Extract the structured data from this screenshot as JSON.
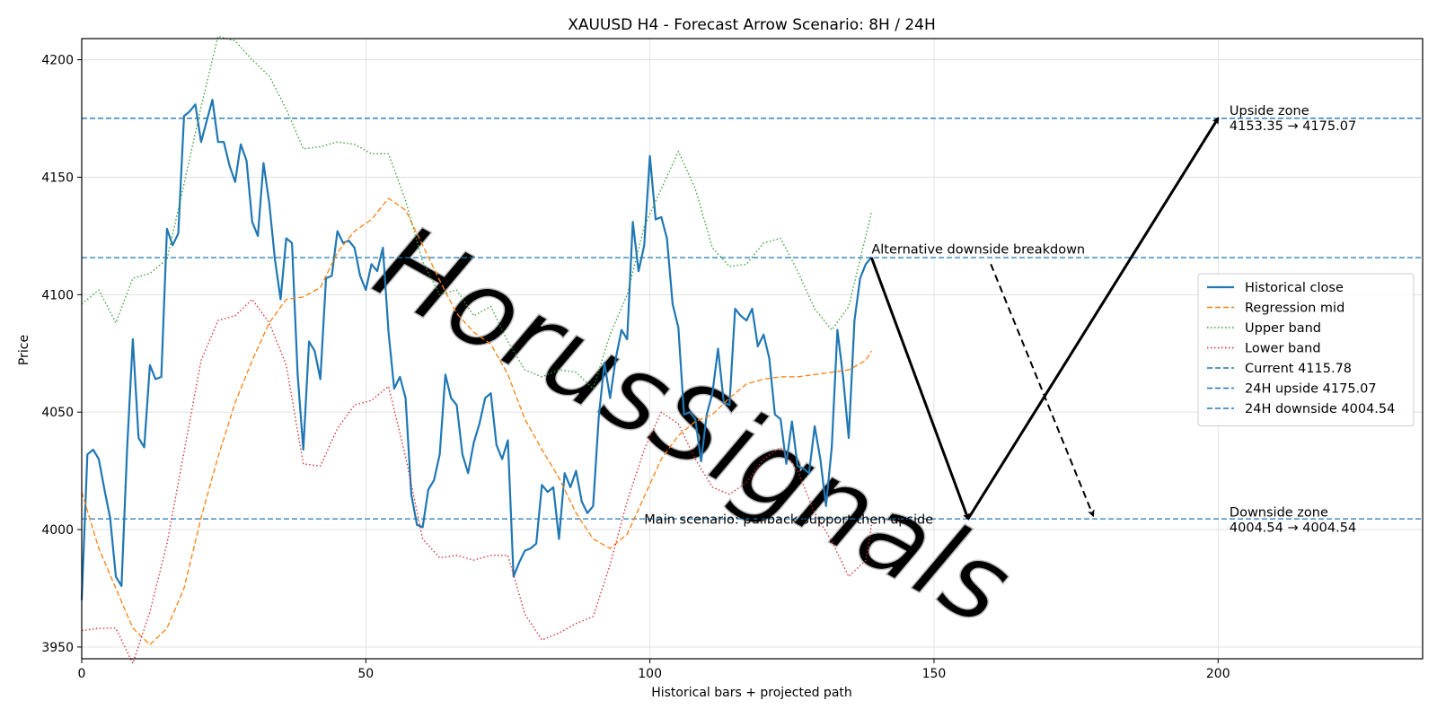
{
  "chart_data": {
    "type": "line",
    "title": "XAUUSD H4 - Forecast Arrow Scenario: 8H / 24H",
    "xlabel": "Historical bars + projected path",
    "ylabel": "Price",
    "xlim": [
      0,
      236
    ],
    "ylim": [
      3945,
      4209
    ],
    "xticks": [
      0,
      50,
      100,
      150,
      200
    ],
    "yticks": [
      3950,
      4000,
      4050,
      4100,
      4150,
      4200
    ],
    "grid": true,
    "legend_position": "center-right",
    "watermark": "HorusSignals",
    "series": [
      {
        "name": "Historical close",
        "style": "solid",
        "color": "#1f77b4",
        "x": [
          0,
          1,
          2,
          3,
          4,
          5,
          6,
          7,
          8,
          9,
          10,
          11,
          12,
          13,
          14,
          15,
          16,
          17,
          18,
          19,
          20,
          21,
          22,
          23,
          24,
          25,
          26,
          27,
          28,
          29,
          30,
          31,
          32,
          33,
          34,
          35,
          36,
          37,
          38,
          39,
          40,
          41,
          42,
          43,
          44,
          45,
          46,
          47,
          48,
          49,
          50,
          51,
          52,
          53,
          54,
          55,
          56,
          57,
          58,
          59,
          60,
          61,
          62,
          63,
          64,
          65,
          66,
          67,
          68,
          69,
          70,
          71,
          72,
          73,
          74,
          75,
          76,
          77,
          78,
          79,
          80,
          81,
          82,
          83,
          84,
          85,
          86,
          87,
          88,
          89,
          90,
          91,
          92,
          93,
          94,
          95,
          96,
          97,
          98,
          99,
          100,
          101,
          102,
          103,
          104,
          105,
          106,
          107,
          108,
          109,
          110,
          111,
          112,
          113,
          114,
          115,
          116,
          117,
          118,
          119,
          120,
          121,
          122,
          123,
          124,
          125,
          126,
          127,
          128,
          129,
          130,
          131,
          132,
          133,
          134,
          135,
          136,
          137,
          138,
          139
        ],
        "y": [
          3970,
          4032,
          4034,
          4030,
          4017,
          4005,
          3980,
          3976,
          4035,
          4081,
          4039,
          4035,
          4070,
          4064,
          4065,
          4128,
          4121,
          4126,
          4176,
          4178,
          4181,
          4165,
          4174,
          4183,
          4165,
          4165,
          4155,
          4148,
          4164,
          4157,
          4131,
          4125,
          4156,
          4139,
          4115,
          4098,
          4124,
          4122,
          4066,
          4034,
          4080,
          4076,
          4064,
          4107,
          4108,
          4127,
          4122,
          4123,
          4120,
          4108,
          4102,
          4113,
          4110,
          4120,
          4084,
          4060,
          4065,
          4056,
          4015,
          4002,
          4001,
          4017,
          4021,
          4032,
          4066,
          4056,
          4053,
          4032,
          4024,
          4037,
          4045,
          4056,
          4058,
          4036,
          4030,
          4038,
          3980,
          3986,
          3991,
          3992,
          3994,
          4019,
          4016,
          4018,
          3996,
          4024,
          4018,
          4025,
          4012,
          4007,
          4010,
          4048,
          4071,
          4056,
          4073,
          4085,
          4081,
          4131,
          4110,
          4121,
          4159,
          4132,
          4133,
          4124,
          4096,
          4086,
          4049,
          4050,
          4047,
          4029,
          4049,
          4058,
          4077,
          4054,
          4053,
          4094,
          4091,
          4089,
          4094,
          4078,
          4083,
          4073,
          4049,
          4047,
          4028,
          4046,
          4027,
          4026,
          4024,
          4044,
          4030,
          4010,
          4035,
          4085,
          4065,
          4039,
          4089,
          4107,
          4113,
          4116
        ]
      },
      {
        "name": "Regression mid",
        "style": "dashed",
        "color": "#ff7f0e",
        "x": [
          0,
          3,
          6,
          9,
          12,
          15,
          18,
          21,
          24,
          27,
          30,
          33,
          36,
          39,
          42,
          45,
          48,
          51,
          54,
          57,
          60,
          63,
          66,
          69,
          72,
          75,
          78,
          81,
          84,
          87,
          90,
          93,
          96,
          99,
          102,
          105,
          108,
          111,
          114,
          117,
          120,
          123,
          126,
          129,
          132,
          135,
          138,
          139
        ],
        "y": [
          4016,
          3992,
          3975,
          3958,
          3951,
          3958,
          3975,
          4005,
          4031,
          4054,
          4072,
          4088,
          4098,
          4099,
          4103,
          4118,
          4127,
          4132,
          4141,
          4136,
          4121,
          4106,
          4092,
          4084,
          4079,
          4066,
          4047,
          4034,
          4022,
          4007,
          3996,
          3992,
          3998,
          4014,
          4030,
          4040,
          4046,
          4049,
          4056,
          4062,
          4064,
          4065,
          4065,
          4066,
          4067,
          4068,
          4072,
          4076
        ]
      },
      {
        "name": "Upper band",
        "style": "dotted",
        "color": "#2ca02c",
        "x": [
          0,
          3,
          6,
          9,
          12,
          15,
          18,
          21,
          24,
          27,
          30,
          33,
          36,
          39,
          42,
          45,
          48,
          51,
          54,
          57,
          60,
          63,
          66,
          69,
          72,
          75,
          78,
          81,
          84,
          87,
          90,
          93,
          96,
          99,
          102,
          105,
          108,
          111,
          114,
          117,
          120,
          123,
          126,
          129,
          132,
          135,
          138,
          139
        ],
        "y": [
          4096,
          4102,
          4088,
          4107,
          4109,
          4115,
          4147,
          4180,
          4210,
          4208,
          4200,
          4193,
          4179,
          4162,
          4163,
          4165,
          4164,
          4160,
          4160,
          4140,
          4114,
          4100,
          4102,
          4091,
          4095,
          4080,
          4068,
          4065,
          4068,
          4067,
          4060,
          4083,
          4100,
          4129,
          4145,
          4161,
          4145,
          4120,
          4112,
          4113,
          4122,
          4124,
          4110,
          4094,
          4085,
          4095,
          4125,
          4135
        ]
      },
      {
        "name": "Lower band",
        "style": "dotted",
        "color": "#d62728",
        "x": [
          0,
          3,
          6,
          9,
          12,
          15,
          18,
          21,
          24,
          27,
          30,
          33,
          36,
          39,
          42,
          45,
          48,
          51,
          54,
          57,
          60,
          63,
          66,
          69,
          72,
          75,
          78,
          81,
          84,
          87,
          90,
          93,
          96,
          99,
          102,
          105,
          108,
          111,
          114,
          117,
          120,
          123,
          126,
          129,
          132,
          135,
          138,
          139
        ],
        "y": [
          3957,
          3958,
          3958,
          3943,
          3965,
          3994,
          4033,
          4072,
          4089,
          4091,
          4098,
          4088,
          4070,
          4028,
          4027,
          4043,
          4053,
          4055,
          4061,
          4031,
          3996,
          3988,
          3989,
          3987,
          3989,
          3989,
          3964,
          3953,
          3956,
          3960,
          3963,
          3985,
          4012,
          4034,
          4050,
          4045,
          4030,
          4018,
          4015,
          4020,
          4030,
          4035,
          4025,
          4007,
          3995,
          3980,
          3987,
          4002
        ]
      }
    ],
    "hlines": [
      {
        "name": "Current 4115.78",
        "y": 4115.78,
        "color": "#1f77b4"
      },
      {
        "name": "24H upside 4175.07",
        "y": 4175.07,
        "color": "#1f77b4"
      },
      {
        "name": "24H downside 4004.54",
        "y": 4004.54,
        "color": "#1f77b4"
      }
    ],
    "arrows": [
      {
        "role": "main-down",
        "from": [
          139,
          4115.78
        ],
        "to": [
          156,
          4004.54
        ],
        "style": "solid"
      },
      {
        "role": "main-up",
        "from": [
          156,
          4004.54
        ],
        "to": [
          200,
          4175.07
        ],
        "style": "solid"
      },
      {
        "role": "alternative",
        "from": [
          160,
          4113
        ],
        "to": [
          178,
          4006
        ],
        "style": "dashed"
      }
    ],
    "annotations": [
      {
        "text": "Alternative downside breakdown",
        "x": 139,
        "y": 4117.5,
        "anchor": "start"
      },
      {
        "text": "Main scenario: pullback/support then upside",
        "x": 99,
        "y": 4002.5,
        "anchor": "start"
      },
      {
        "text": "Upside zone",
        "x": 202,
        "y": 4176.5,
        "anchor": "start"
      },
      {
        "text": "4153.35 → 4175.07",
        "x": 202,
        "y": 4170,
        "anchor": "start"
      },
      {
        "text": "Downside zone",
        "x": 202,
        "y": 4005.5,
        "anchor": "start"
      },
      {
        "text": "4004.54 → 4004.54",
        "x": 202,
        "y": 3999,
        "anchor": "start"
      }
    ]
  }
}
